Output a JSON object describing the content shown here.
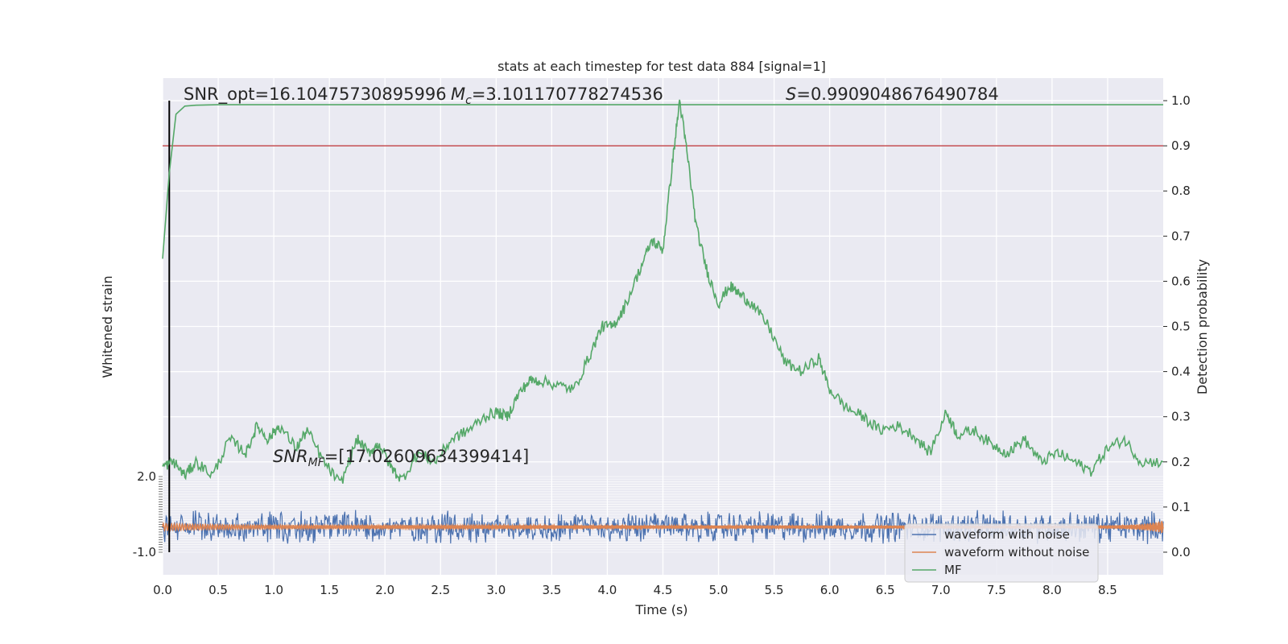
{
  "chart_data": {
    "type": "line",
    "title": "stats at each timestep for test data 884 [signal=1]",
    "xlabel": "Time (s)",
    "ylabel_left": "Whitened strain",
    "ylabel_right": "Detection probability",
    "xlim": [
      0.0,
      9.0
    ],
    "ylim_right": [
      -0.05,
      1.05
    ],
    "ylim_left": [
      -1.0,
      2.0
    ],
    "x_ticks": [
      "0.0",
      "0.5",
      "1.0",
      "1.5",
      "2.0",
      "2.5",
      "3.0",
      "3.5",
      "4.0",
      "4.5",
      "5.0",
      "5.5",
      "6.0",
      "6.5",
      "7.0",
      "7.5",
      "8.0",
      "8.5"
    ],
    "y_ticks_right": [
      "0.0",
      "0.1",
      "0.2",
      "0.3",
      "0.4",
      "0.5",
      "0.6",
      "0.7",
      "0.8",
      "0.9",
      "1.0"
    ],
    "y_ticks_left": [
      "-1.0",
      "2.0"
    ],
    "annotations": {
      "snr_opt_label": "SNR_opt=16.10475730895996",
      "mc_symbol": "M",
      "mc_subscript": "c",
      "mc_value": "=3.101170778274536",
      "s_symbol": "S",
      "s_value": "=0.9909048676490784",
      "snr_mf_symbol": "SNR",
      "snr_mf_subscript": "MF",
      "snr_mf_value": "=[17.02609634399414]"
    },
    "threshold": 0.9,
    "vline_x": 0.06,
    "legend": {
      "placement": "lower-right",
      "entries": [
        "waveform with noise",
        "waveform without noise",
        "MF"
      ]
    },
    "series": [
      {
        "name": "MF",
        "x": [
          0.0,
          0.06,
          0.12,
          0.2,
          0.3,
          0.5,
          9.0
        ],
        "values": [
          0.65,
          0.84,
          0.97,
          0.988,
          0.99,
          0.991,
          0.991
        ]
      },
      {
        "name": "",
        "x": [
          0.0,
          0.1,
          0.2,
          0.3,
          0.45,
          0.6,
          0.75,
          0.85,
          0.95,
          1.05,
          1.2,
          1.3,
          1.45,
          1.6,
          1.75,
          1.85,
          1.95,
          2.05,
          2.15,
          2.3,
          2.45,
          2.6,
          2.75,
          2.9,
          3.0,
          3.1,
          3.2,
          3.3,
          3.4,
          3.55,
          3.7,
          3.85,
          3.95,
          4.05,
          4.15,
          4.3,
          4.4,
          4.5,
          4.58,
          4.65,
          4.72,
          4.8,
          4.9,
          5.0,
          5.1,
          5.2,
          5.3,
          5.45,
          5.6,
          5.75,
          5.9,
          6.0,
          6.15,
          6.3,
          6.45,
          6.6,
          6.75,
          6.9,
          7.05,
          7.15,
          7.3,
          7.45,
          7.6,
          7.75,
          7.9,
          8.05,
          8.2,
          8.35,
          8.5,
          8.65,
          8.8,
          9.0
        ],
        "values": [
          0.19,
          0.2,
          0.17,
          0.2,
          0.17,
          0.25,
          0.22,
          0.28,
          0.25,
          0.28,
          0.23,
          0.27,
          0.2,
          0.15,
          0.25,
          0.22,
          0.24,
          0.19,
          0.16,
          0.22,
          0.2,
          0.25,
          0.27,
          0.3,
          0.31,
          0.3,
          0.35,
          0.38,
          0.38,
          0.37,
          0.36,
          0.44,
          0.5,
          0.5,
          0.54,
          0.63,
          0.69,
          0.67,
          0.85,
          1.0,
          0.88,
          0.72,
          0.62,
          0.55,
          0.59,
          0.57,
          0.55,
          0.5,
          0.42,
          0.4,
          0.43,
          0.36,
          0.32,
          0.3,
          0.27,
          0.28,
          0.26,
          0.22,
          0.31,
          0.26,
          0.27,
          0.24,
          0.22,
          0.25,
          0.2,
          0.22,
          0.2,
          0.18,
          0.23,
          0.25,
          0.2,
          0.2
        ]
      }
    ]
  }
}
